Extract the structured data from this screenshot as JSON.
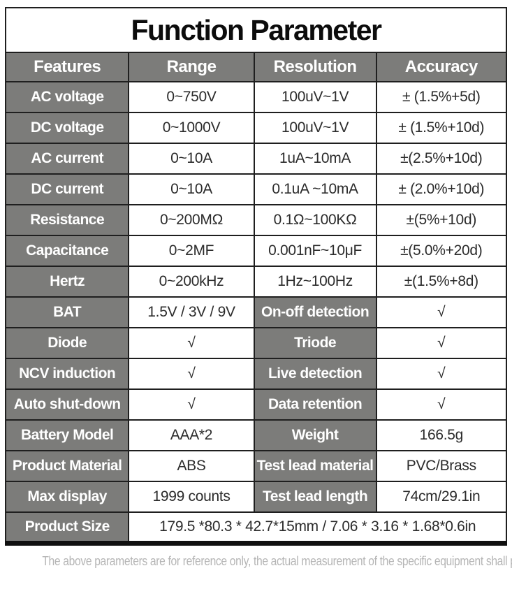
{
  "title": "Function Parameter",
  "table": {
    "headers": [
      "Features",
      "Range",
      "Resolution",
      "Accuracy"
    ],
    "spec_rows": [
      {
        "feature": "AC voltage",
        "range": "0~750V",
        "resolution": "100uV~1V",
        "accuracy": "± (1.5%+5d)"
      },
      {
        "feature": "DC voltage",
        "range": "0~1000V",
        "resolution": "100uV~1V",
        "accuracy": "± (1.5%+10d)"
      },
      {
        "feature": "AC current",
        "range": "0~10A",
        "resolution": "1uA~10mA",
        "accuracy": "±(2.5%+10d)"
      },
      {
        "feature": "DC current",
        "range": "0~10A",
        "resolution": "0.1uA ~10mA",
        "accuracy": "± (2.0%+10d)"
      },
      {
        "feature": "Resistance",
        "range": "0~200MΩ",
        "resolution": "0.1Ω~100KΩ",
        "accuracy": "±(5%+10d)"
      },
      {
        "feature": "Capacitance",
        "range": "0~2MF",
        "resolution": "0.001nF~10μF",
        "accuracy": "±(5.0%+20d)"
      },
      {
        "feature": "Hertz",
        "range": "0~200kHz",
        "resolution": "1Hz~100Hz",
        "accuracy": "±(1.5%+8d)"
      }
    ],
    "pair_rows": [
      {
        "label1": "BAT",
        "value1": "1.5V / 3V / 9V",
        "label2": "On-off detection",
        "value2": "√"
      },
      {
        "label1": "Diode",
        "value1": "√",
        "label2": "Triode",
        "value2": "√"
      },
      {
        "label1": "NCV induction",
        "value1": "√",
        "label2": "Live detection",
        "value2": "√"
      },
      {
        "label1": "Auto shut-down",
        "value1": "√",
        "label2": "Data retention",
        "value2": "√"
      },
      {
        "label1": "Battery Model",
        "value1": "AAA*2",
        "label2": "Weight",
        "value2": "166.5g"
      },
      {
        "label1": "Product Material",
        "value1": "ABS",
        "label2": "Test lead material",
        "value2": "PVC/Brass"
      },
      {
        "label1": "Max display",
        "value1": "1999 counts",
        "label2": "Test lead length",
        "value2": "74cm/29.1in"
      }
    ],
    "size_row": {
      "label": "Product Size",
      "value": "179.5 *80.3 * 42.7*15mm  /  7.06 * 3.16 * 1.68*0.6in"
    }
  },
  "footer": {
    "note": "The above parameters are for reference only, the actual measurement of the specific equipment shall prevail"
  },
  "colors": {
    "header_gray": "#7c7c7a",
    "border": "#1f1f1f",
    "value_text": "#2b2b2b",
    "footer_text": "#b5b5b5"
  }
}
